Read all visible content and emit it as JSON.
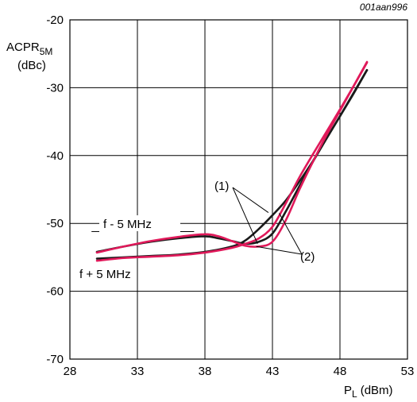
{
  "figure_id": "001aan996",
  "chart_data": {
    "type": "line",
    "title": "",
    "ylabel": {
      "main": "ACPR",
      "sub": "5M",
      "unit": "(dBc)"
    },
    "xlabel": {
      "main": "P",
      "sub": "L",
      "unit": "(dBm)"
    },
    "xlim": [
      28,
      53
    ],
    "ylim": [
      -70,
      -20
    ],
    "x_ticks": [
      28,
      33,
      38,
      43,
      48,
      53
    ],
    "y_ticks": [
      -70,
      -60,
      -50,
      -40,
      -30,
      -20
    ],
    "grid": true,
    "colors": {
      "black": "#1a1a1a",
      "pink": "#e0195a"
    },
    "series": [
      {
        "label_ref": "(1)",
        "side": "f - 5 MHz",
        "color": "black",
        "points": [
          [
            30,
            -55.2
          ],
          [
            32,
            -55.0
          ],
          [
            34,
            -54.8
          ],
          [
            36,
            -54.6
          ],
          [
            38,
            -54.2
          ],
          [
            40,
            -53.4
          ],
          [
            41,
            -52.5
          ],
          [
            42,
            -50.8
          ],
          [
            43,
            -48.8
          ],
          [
            44,
            -46.6
          ],
          [
            45,
            -43.8
          ],
          [
            46,
            -40.8
          ],
          [
            47,
            -37.5
          ],
          [
            48,
            -34.2
          ],
          [
            49,
            -30.9
          ],
          [
            50,
            -27.4
          ]
        ]
      },
      {
        "label_ref": "(1)",
        "side": "f + 5 MHz",
        "color": "black",
        "points": [
          [
            30,
            -54.2
          ],
          [
            32,
            -53.4
          ],
          [
            34,
            -52.7
          ],
          [
            36,
            -52.2
          ],
          [
            38,
            -51.9
          ],
          [
            39,
            -52.2
          ],
          [
            40,
            -52.6
          ],
          [
            41,
            -53.0
          ],
          [
            42,
            -52.7
          ],
          [
            43,
            -51.5
          ],
          [
            44,
            -48.2
          ],
          [
            45,
            -44.5
          ],
          [
            46,
            -40.9
          ],
          [
            47,
            -37.5
          ],
          [
            48,
            -34.2
          ],
          [
            49,
            -30.8
          ],
          [
            50,
            -27.4
          ]
        ]
      },
      {
        "label_ref": "(2)",
        "side": "f - 5 MHz",
        "color": "pink",
        "points": [
          [
            30,
            -55.5
          ],
          [
            32,
            -55.1
          ],
          [
            34,
            -54.9
          ],
          [
            36,
            -54.7
          ],
          [
            38,
            -54.3
          ],
          [
            40,
            -53.6
          ],
          [
            41,
            -53.0
          ],
          [
            42,
            -52.2
          ],
          [
            43,
            -50.5
          ],
          [
            44,
            -47.0
          ],
          [
            45,
            -43.2
          ],
          [
            46,
            -39.8
          ],
          [
            47,
            -36.5
          ],
          [
            48,
            -33.2
          ],
          [
            49,
            -29.8
          ],
          [
            50,
            -26.3
          ]
        ]
      },
      {
        "label_ref": "(2)",
        "side": "f + 5 MHz",
        "color": "pink",
        "points": [
          [
            30,
            -54.3
          ],
          [
            32,
            -53.4
          ],
          [
            34,
            -52.6
          ],
          [
            36,
            -52.0
          ],
          [
            38,
            -51.6
          ],
          [
            39,
            -51.9
          ],
          [
            40,
            -52.6
          ],
          [
            41,
            -53.3
          ],
          [
            42,
            -53.4
          ],
          [
            43,
            -52.7
          ],
          [
            44,
            -49.5
          ],
          [
            45,
            -45.0
          ],
          [
            46,
            -40.9
          ],
          [
            47,
            -37.0
          ],
          [
            48,
            -33.4
          ],
          [
            49,
            -29.8
          ],
          [
            50,
            -26.2
          ]
        ]
      }
    ],
    "annotations": {
      "f_minus": "f - 5 MHz",
      "f_plus": "f + 5 MHz",
      "ref1": "(1)",
      "ref2": "(2)"
    }
  }
}
